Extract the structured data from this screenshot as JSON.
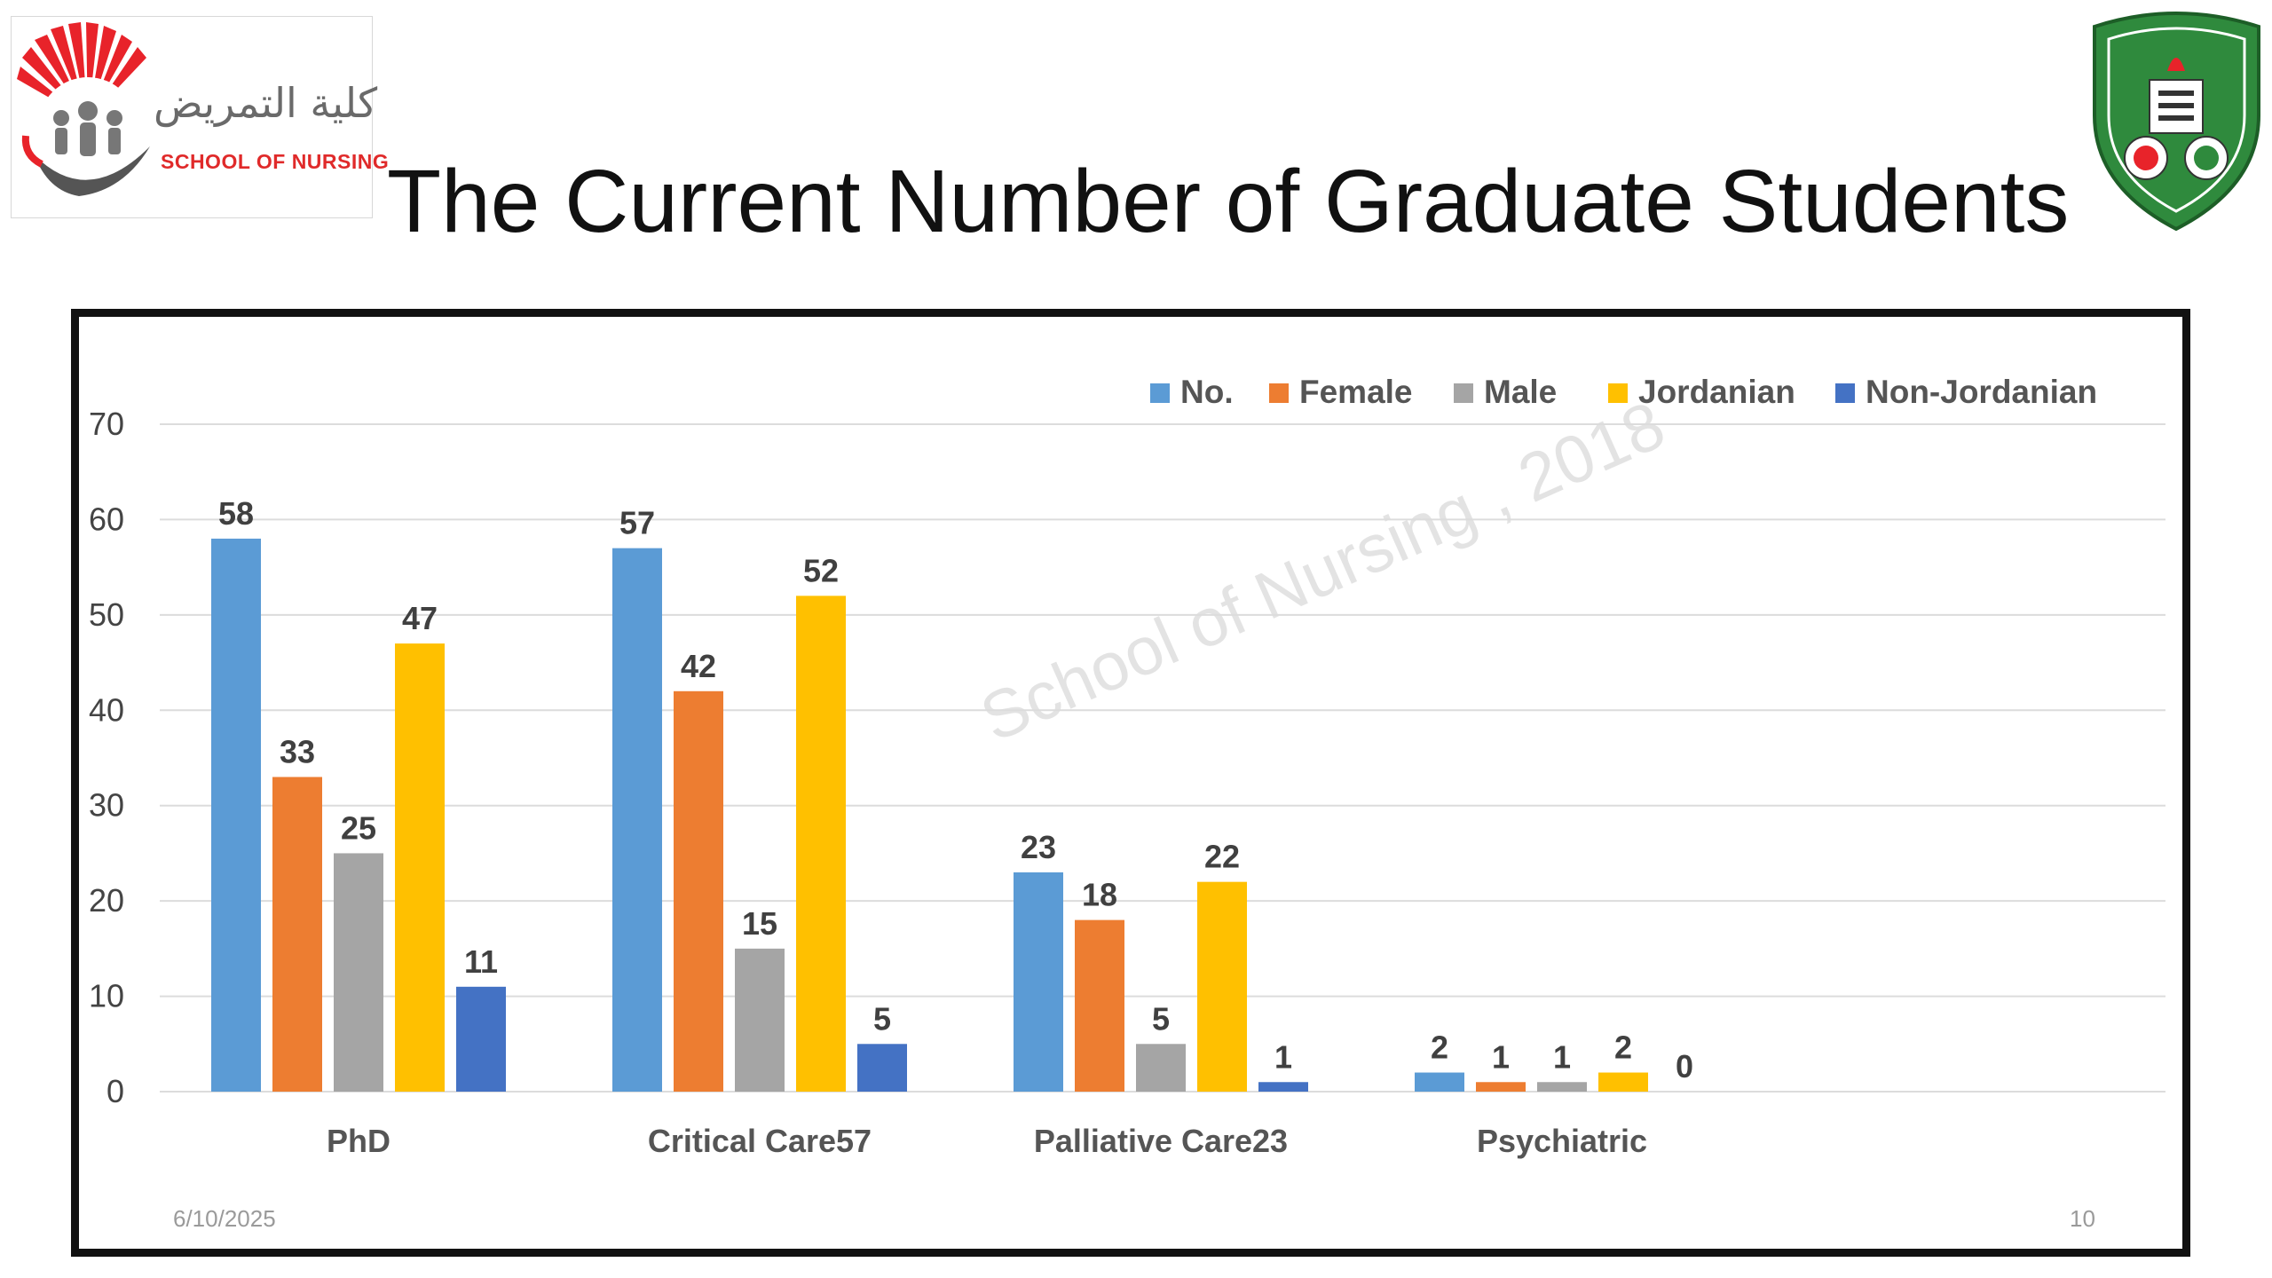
{
  "logo": {
    "arabic": "كلية التمريض",
    "english": "SCHOOL OF NURSING"
  },
  "slide": {
    "title": "The Current Number of Graduate Students",
    "date": "6/10/2025",
    "page_number": "10"
  },
  "watermark": "School of Nursing , 2018",
  "colors": {
    "no": "#5b9bd5",
    "female": "#ed7d31",
    "male": "#a5a5a5",
    "jordanian": "#ffc000",
    "non_jordanian": "#4472c4"
  },
  "chart_data": {
    "type": "bar",
    "title": "",
    "xlabel": "",
    "ylabel": "",
    "ylim": [
      0,
      70
    ],
    "yticks": [
      0,
      10,
      20,
      30,
      40,
      50,
      60,
      70
    ],
    "grid": true,
    "legend_position": "top-right",
    "categories": [
      "PhD",
      "Critical Care57",
      "Palliative Care23",
      "Psychiatric"
    ],
    "series": [
      {
        "name": "No.",
        "color": "#5b9bd5",
        "values": [
          58,
          57,
          23,
          2
        ]
      },
      {
        "name": "Female",
        "color": "#ed7d31",
        "values": [
          33,
          42,
          18,
          1
        ]
      },
      {
        "name": "Male",
        "color": "#a5a5a5",
        "values": [
          25,
          15,
          5,
          1
        ]
      },
      {
        "name": "Jordanian",
        "color": "#ffc000",
        "values": [
          47,
          52,
          22,
          2
        ]
      },
      {
        "name": "Non-Jordanian",
        "color": "#4472c4",
        "values": [
          11,
          5,
          1,
          0
        ]
      }
    ]
  }
}
